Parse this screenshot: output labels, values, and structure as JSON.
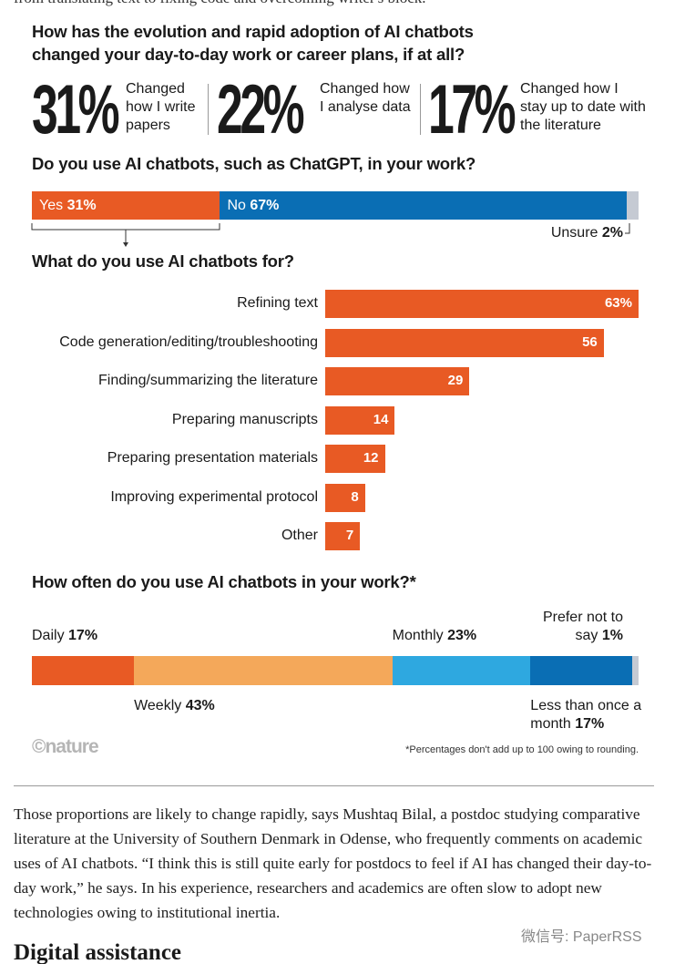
{
  "intro_tail": "from translating text to fixing code and overcoming writer's block.",
  "chart_data": [
    {
      "type": "stat",
      "title": "How has the evolution and rapid adoption of AI chatbots changed your day-to-day work or career plans, if at all?",
      "categories": [
        "Changed how I write papers",
        "Changed how I analyse data",
        "Changed how I stay up to date with the literature"
      ],
      "values": [
        31,
        22,
        17
      ],
      "value_labels": [
        "31%",
        "22%",
        "17%"
      ]
    },
    {
      "type": "stacked",
      "title": "Do you use AI chatbots, such as ChatGPT, in your work?",
      "series": [
        {
          "name": "Yes",
          "color": "#e85a24",
          "values": [
            31
          ],
          "value_labels": [
            "31%"
          ]
        },
        {
          "name": "No",
          "color": "#0a6eb4",
          "values": [
            67
          ],
          "value_labels": [
            "67%"
          ]
        },
        {
          "name": "Unsure",
          "color": "#c5cad3",
          "values": [
            2
          ],
          "value_labels": [
            "2%"
          ]
        }
      ]
    },
    {
      "type": "bar",
      "title": "What do you use AI chatbots for?",
      "color": "#e85a24",
      "categories": [
        "Refining text",
        "Code generation/editing/troubleshooting",
        "Finding/summarizing the literature",
        "Preparing manuscripts",
        "Preparing presentation materials",
        "Improving experimental protocol",
        "Other"
      ],
      "values": [
        63,
        56,
        29,
        14,
        12,
        8,
        7
      ],
      "value_labels": [
        "63%",
        "56",
        "29",
        "14",
        "12",
        "8",
        "7"
      ]
    },
    {
      "type": "stacked",
      "title": "How often do you use AI chatbots in your work?*",
      "series": [
        {
          "name": "Daily",
          "color": "#e85a24",
          "values": [
            17
          ],
          "value_labels": [
            "17%"
          ]
        },
        {
          "name": "Weekly",
          "color": "#f4a85a",
          "values": [
            43
          ],
          "value_labels": [
            "43%"
          ]
        },
        {
          "name": "Monthly",
          "color": "#2ea8e0",
          "values": [
            23
          ],
          "value_labels": [
            "23%"
          ]
        },
        {
          "name": "Less than once a month",
          "color": "#0a6eb4",
          "values": [
            17
          ],
          "value_labels": [
            "17%"
          ]
        },
        {
          "name": "Prefer not to say",
          "color": "#c5cad3",
          "values": [
            1
          ],
          "value_labels": [
            "1%"
          ]
        }
      ],
      "footnote": "*Percentages don't add up to 100 owing to rounding."
    }
  ],
  "source": "©nature",
  "article": {
    "paragraph": "Those proportions are likely to change rapidly, says Mushtaq Bilal, a postdoc studying comparative literature at the University of Southern Denmark in Odense, who frequently comments on academic uses of AI chatbots. “I think this is still quite early for postdocs to feel if AI has changed their day-to-day work,” he says. In his experience, researchers and academics are often slow to adopt new technologies owing to institutional inertia.",
    "heading": "Digital assistance"
  },
  "watermark": "微信号: PaperRSS"
}
